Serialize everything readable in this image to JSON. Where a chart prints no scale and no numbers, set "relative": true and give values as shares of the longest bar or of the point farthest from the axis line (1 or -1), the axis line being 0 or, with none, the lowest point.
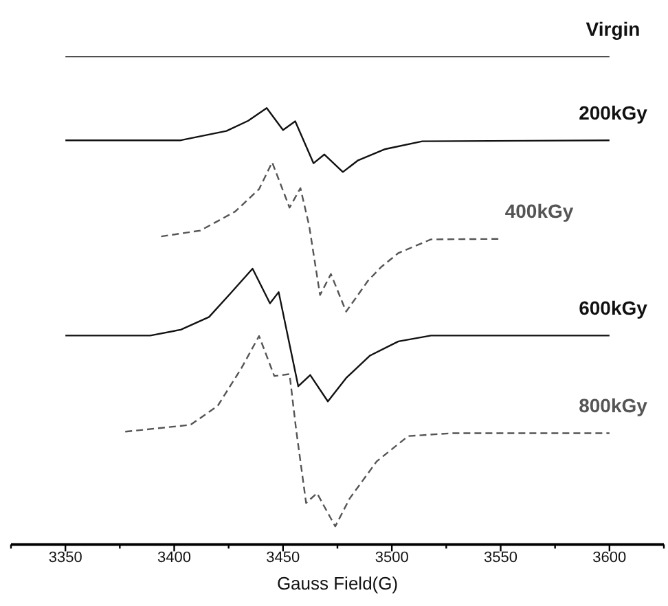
{
  "chart_data": {
    "type": "line",
    "relative": true,
    "xlabel": "Gauss Field(G)",
    "xlim": [
      3325,
      3625
    ],
    "xticks": [
      {
        "value": 3325,
        "label": null
      },
      3350,
      {
        "value": 3375,
        "label": null
      },
      3400,
      {
        "value": 3425,
        "label": null
      },
      3450,
      {
        "value": 3475,
        "label": null
      },
      3500,
      {
        "value": 3525,
        "label": null
      },
      3550,
      {
        "value": 3575,
        "label": null
      },
      3600,
      {
        "value": 3625,
        "label": null
      }
    ],
    "grid": false,
    "legend": false,
    "tick_labels": "x",
    "marker": "none",
    "series": [
      {
        "name": "Virgin",
        "color": "#111111",
        "line_style": "solid",
        "x": [
          3350,
          3600
        ],
        "values": [
          1.0,
          1.0
        ]
      },
      {
        "name": "200kGy",
        "color": "#111111",
        "line_style": "solid",
        "x": [
          3350,
          3403,
          3424,
          3434,
          3442.5,
          3450,
          3455.6,
          3464,
          3469,
          3477.5,
          3484.5,
          3497,
          3514,
          3600
        ],
        "values": [
          0.828,
          0.828,
          0.847,
          0.868,
          0.894,
          0.849,
          0.867,
          0.781,
          0.799,
          0.763,
          0.787,
          0.81,
          0.826,
          0.828
        ]
      },
      {
        "name": "400kGy",
        "color": "#555555",
        "line_style": "dashed",
        "x": [
          3394,
          3412,
          3428,
          3439,
          3445,
          3453,
          3458,
          3462,
          3467,
          3472,
          3479,
          3489,
          3495,
          3503,
          3518,
          3550
        ],
        "values": [
          0.631,
          0.643,
          0.682,
          0.728,
          0.783,
          0.69,
          0.73,
          0.653,
          0.511,
          0.554,
          0.477,
          0.54,
          0.568,
          0.597,
          0.625,
          0.626
        ]
      },
      {
        "name": "600kGy",
        "color": "#111111",
        "line_style": "solid",
        "x": [
          3350,
          3389,
          3403,
          3416,
          3426,
          3436,
          3444,
          3448,
          3457,
          3462.5,
          3470.6,
          3479,
          3490,
          3503,
          3518,
          3600
        ],
        "values": [
          0.428,
          0.428,
          0.44,
          0.466,
          0.515,
          0.565,
          0.494,
          0.517,
          0.324,
          0.347,
          0.293,
          0.341,
          0.387,
          0.416,
          0.428,
          0.428
        ]
      },
      {
        "name": "800kGy",
        "color": "#555555",
        "line_style": "dashed",
        "x": [
          3377.5,
          3407.5,
          3420,
          3430.6,
          3439,
          3446,
          3453,
          3456,
          3460.6,
          3465.6,
          3474,
          3480.6,
          3493,
          3507.5,
          3528,
          3600
        ],
        "values": [
          0.231,
          0.245,
          0.284,
          0.359,
          0.427,
          0.345,
          0.349,
          0.236,
          0.085,
          0.105,
          0.037,
          0.094,
          0.17,
          0.222,
          0.228,
          0.228
        ]
      }
    ]
  }
}
